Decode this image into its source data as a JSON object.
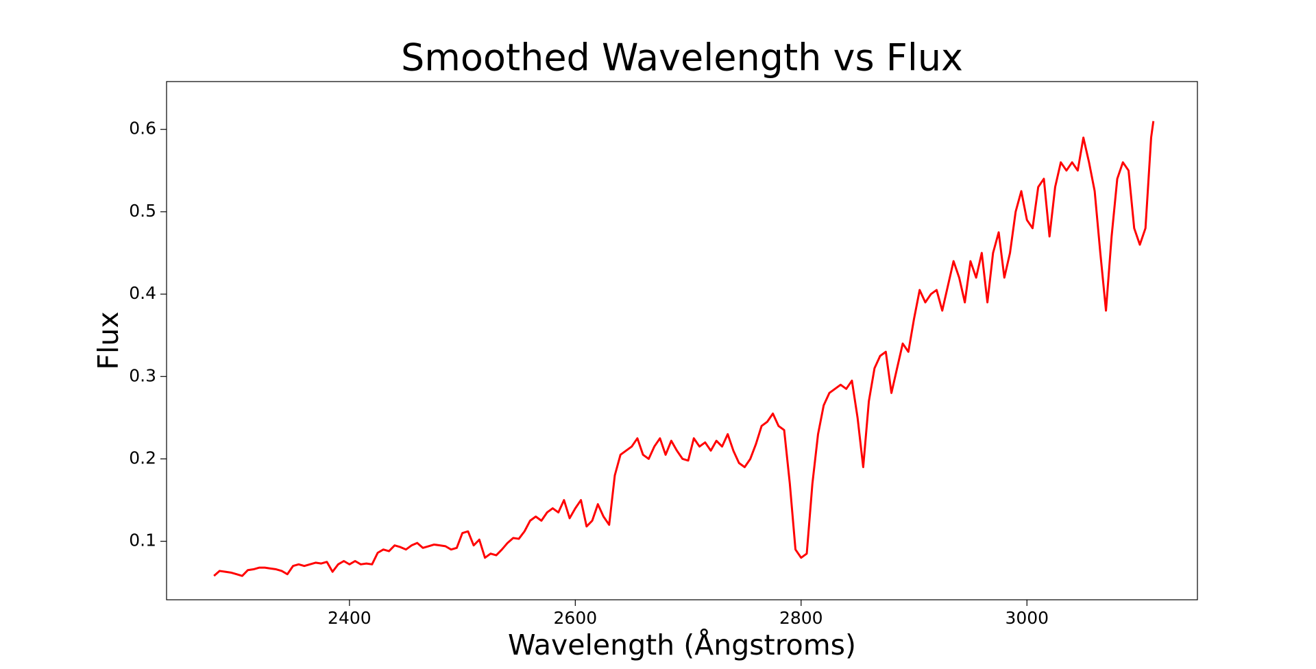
{
  "chart_data": {
    "type": "line",
    "title": "Smoothed Wavelength vs Flux",
    "x_label": "Wavelength (Ångstroms)",
    "y_label": "Flux",
    "xlim": [
      2238,
      3151
    ],
    "ylim": [
      0.029,
      0.658
    ],
    "xticks": [
      2400,
      2600,
      2800,
      3000
    ],
    "yticks": [
      0.1,
      0.2,
      0.3,
      0.4,
      0.5,
      0.6
    ],
    "grid": false,
    "x": [
      2280,
      2285,
      2290,
      2295,
      2300,
      2305,
      2310,
      2315,
      2320,
      2325,
      2330,
      2335,
      2340,
      2345,
      2350,
      2355,
      2360,
      2365,
      2370,
      2375,
      2380,
      2385,
      2390,
      2395,
      2400,
      2405,
      2410,
      2415,
      2420,
      2425,
      2430,
      2435,
      2440,
      2445,
      2450,
      2455,
      2460,
      2465,
      2470,
      2475,
      2480,
      2485,
      2490,
      2495,
      2500,
      2505,
      2510,
      2515,
      2520,
      2525,
      2530,
      2535,
      2540,
      2545,
      2550,
      2555,
      2560,
      2565,
      2570,
      2575,
      2580,
      2585,
      2590,
      2595,
      2600,
      2605,
      2610,
      2615,
      2620,
      2625,
      2630,
      2635,
      2640,
      2645,
      2650,
      2655,
      2660,
      2665,
      2670,
      2675,
      2680,
      2685,
      2690,
      2695,
      2700,
      2705,
      2710,
      2715,
      2720,
      2725,
      2730,
      2735,
      2740,
      2745,
      2750,
      2755,
      2760,
      2765,
      2770,
      2775,
      2780,
      2785,
      2790,
      2795,
      2800,
      2805,
      2810,
      2815,
      2820,
      2825,
      2830,
      2835,
      2840,
      2845,
      2850,
      2855,
      2860,
      2865,
      2870,
      2875,
      2880,
      2885,
      2890,
      2895,
      2900,
      2905,
      2910,
      2915,
      2920,
      2925,
      2930,
      2935,
      2940,
      2945,
      2950,
      2955,
      2960,
      2965,
      2970,
      2975,
      2980,
      2985,
      2990,
      2995,
      3000,
      3005,
      3010,
      3015,
      3020,
      3025,
      3030,
      3035,
      3040,
      3045,
      3050,
      3055,
      3060,
      3065,
      3070,
      3075,
      3080,
      3085,
      3090,
      3095,
      3100,
      3105,
      3110,
      3112
    ],
    "series": [
      {
        "name": "Flux",
        "color": "#ff0000",
        "values": [
          0.058,
          0.064,
          0.063,
          0.062,
          0.06,
          0.058,
          0.065,
          0.066,
          0.068,
          0.068,
          0.067,
          0.066,
          0.064,
          0.06,
          0.07,
          0.072,
          0.07,
          0.072,
          0.074,
          0.073,
          0.075,
          0.063,
          0.072,
          0.076,
          0.072,
          0.076,
          0.072,
          0.073,
          0.072,
          0.086,
          0.09,
          0.088,
          0.095,
          0.093,
          0.09,
          0.095,
          0.098,
          0.092,
          0.094,
          0.096,
          0.095,
          0.094,
          0.09,
          0.092,
          0.11,
          0.112,
          0.095,
          0.102,
          0.08,
          0.085,
          0.083,
          0.09,
          0.098,
          0.104,
          0.103,
          0.112,
          0.125,
          0.13,
          0.125,
          0.135,
          0.14,
          0.135,
          0.15,
          0.128,
          0.14,
          0.15,
          0.118,
          0.125,
          0.145,
          0.13,
          0.12,
          0.18,
          0.205,
          0.21,
          0.215,
          0.225,
          0.205,
          0.2,
          0.215,
          0.225,
          0.205,
          0.222,
          0.21,
          0.2,
          0.198,
          0.225,
          0.215,
          0.22,
          0.21,
          0.222,
          0.215,
          0.23,
          0.21,
          0.195,
          0.19,
          0.2,
          0.218,
          0.24,
          0.245,
          0.255,
          0.24,
          0.235,
          0.17,
          0.09,
          0.08,
          0.085,
          0.17,
          0.23,
          0.265,
          0.28,
          0.285,
          0.29,
          0.285,
          0.295,
          0.25,
          0.19,
          0.27,
          0.31,
          0.325,
          0.33,
          0.28,
          0.31,
          0.34,
          0.33,
          0.37,
          0.405,
          0.39,
          0.4,
          0.405,
          0.38,
          0.41,
          0.44,
          0.42,
          0.39,
          0.44,
          0.42,
          0.45,
          0.39,
          0.45,
          0.475,
          0.42,
          0.45,
          0.5,
          0.525,
          0.49,
          0.48,
          0.53,
          0.54,
          0.47,
          0.53,
          0.56,
          0.55,
          0.56,
          0.55,
          0.59,
          0.56,
          0.525,
          0.45,
          0.38,
          0.47,
          0.54,
          0.56,
          0.55,
          0.48,
          0.46,
          0.48,
          0.59,
          0.61
        ]
      }
    ]
  }
}
